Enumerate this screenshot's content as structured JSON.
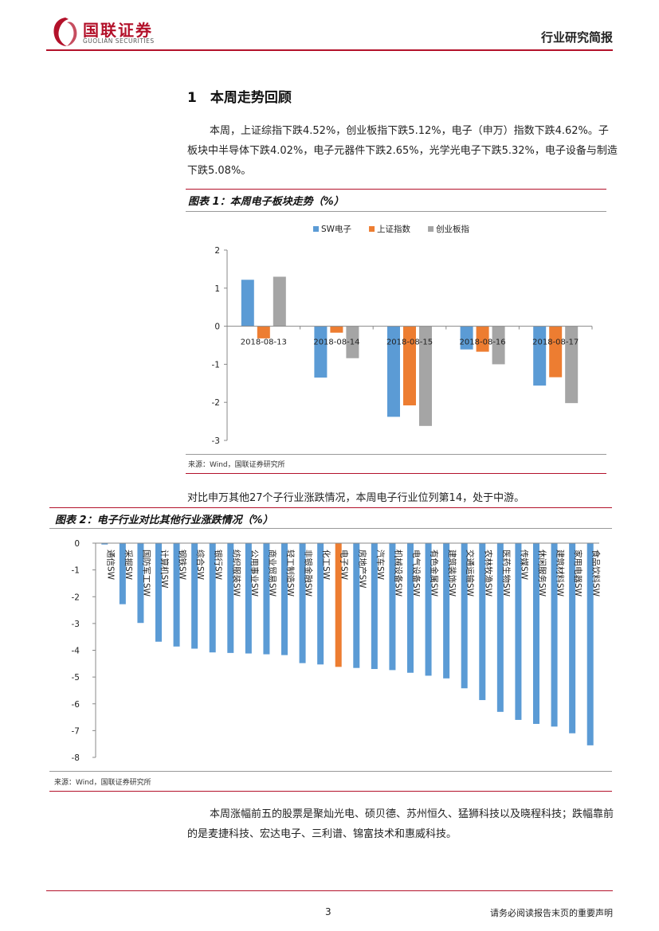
{
  "header": {
    "logo_cn": "国联证券",
    "logo_en": "GUOLIAN SECURITIES",
    "report_type": "行业研究简报",
    "brand_color": "#b3112a"
  },
  "section": {
    "title": "1　本周走势回顾",
    "paragraph1": "本周，上证综指下跌4.52%，创业板指下跌5.12%，电子（申万）指数下跌4.62%。子板块中半导体下跌4.02%，电子元器件下跌2.65%，光学光电子下跌5.32%，电子设备与制造下跌5.08%。",
    "paragraph2": "对比申万其他27个子行业涨跌情况，本周电子行业位列第14，处于中游。",
    "paragraph3": "本周涨幅前五的股票是聚灿光电、硕贝德、苏州恒久、猛狮科技以及晓程科技；跌幅靠前的是麦捷科技、宏达电子、三利谱、锦富技术和惠威科技。"
  },
  "figure1": {
    "title": "图表 1：本周电子板块走势（%）",
    "source": "来源：Wind，国联证券研究所"
  },
  "figure2": {
    "title": "图表 2：电子行业对比其他行业涨跌情况（%）",
    "source": "来源：Wind，国联证券研究所"
  },
  "footer": {
    "page_number": "3",
    "disclaimer": "请务必阅读报告末页的重要声明"
  },
  "chart_data": [
    {
      "type": "bar",
      "title": "本周电子板块走势（%）",
      "categories": [
        "2018-08-13",
        "2018-08-14",
        "2018-08-15",
        "2018-08-16",
        "2018-08-17"
      ],
      "series": [
        {
          "name": "SW电子",
          "color": "#5b9bd5",
          "values": [
            1.22,
            -1.35,
            -2.38,
            -0.61,
            -1.56
          ]
        },
        {
          "name": "上证指数",
          "color": "#ed7d31",
          "values": [
            -0.32,
            -0.17,
            -2.08,
            -0.67,
            -1.34
          ]
        },
        {
          "name": "创业板指",
          "color": "#a5a5a5",
          "values": [
            1.3,
            -0.84,
            -2.62,
            -1.0,
            -2.02
          ]
        }
      ],
      "ylim": [
        -3,
        2
      ],
      "yticks": [
        2,
        1,
        0,
        -1,
        -2,
        -3
      ],
      "legend": "top"
    },
    {
      "type": "bar",
      "title": "电子行业对比其他行业涨跌情况（%）",
      "categories": [
        "通信SW",
        "采掘SW",
        "国防军工SW",
        "计算机SW",
        "钢铁SW",
        "综合SW",
        "银行SW",
        "纺织服装SW",
        "公用事业SW",
        "商业贸易SW",
        "轻工制造SW",
        "非银金融SW",
        "化工SW",
        "电子SW",
        "房地产SW",
        "汽车SW",
        "机械设备SW",
        "电气设备SW",
        "有色金属SW",
        "建筑装饰SW",
        "交通运输SW",
        "农林牧渔SW",
        "医药生物SW",
        "传媒SW",
        "休闲服务SW",
        "建筑材料SW",
        "家用电器SW",
        "食品饮料SW"
      ],
      "values": [
        -0.05,
        -2.28,
        -2.98,
        -3.68,
        -3.86,
        -3.94,
        -4.08,
        -4.1,
        -4.12,
        -4.15,
        -4.18,
        -4.48,
        -4.53,
        -4.62,
        -4.66,
        -4.7,
        -4.74,
        -4.84,
        -4.95,
        -5.05,
        -5.42,
        -5.86,
        -6.3,
        -6.6,
        -6.75,
        -6.85,
        -7.1,
        -7.55
      ],
      "highlight": "电子SW",
      "bar_color": "#5b9bd5",
      "highlight_color": "#ed7d31",
      "ylim": [
        -8,
        0
      ],
      "yticks": [
        0,
        -1,
        -2,
        -3,
        -4,
        -5,
        -6,
        -7,
        -8
      ]
    }
  ]
}
